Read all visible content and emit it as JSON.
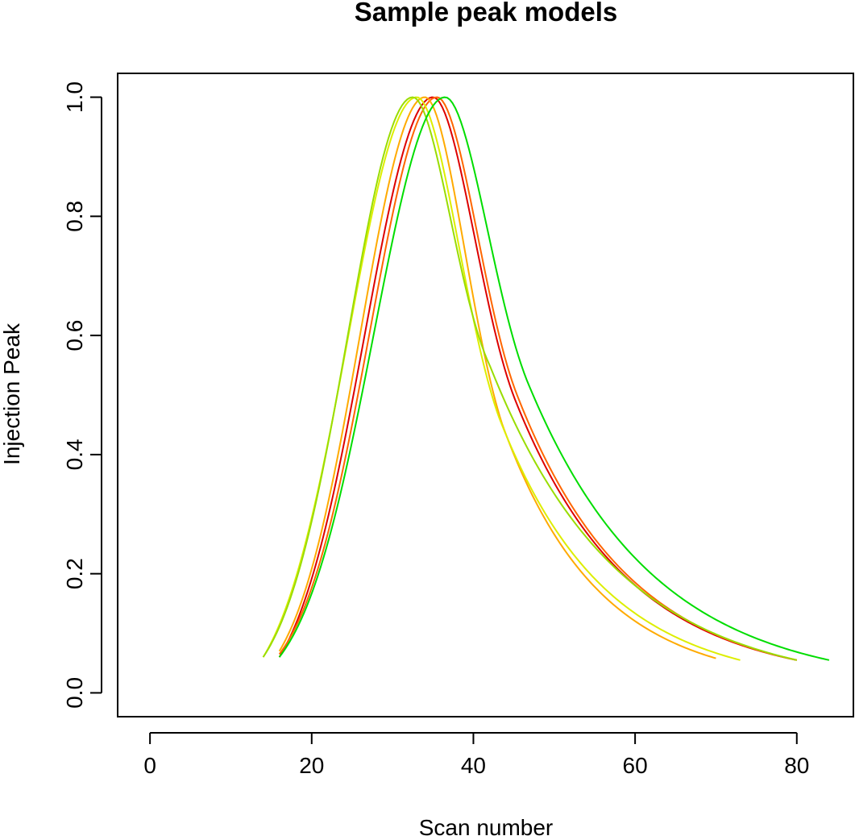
{
  "chart_data": {
    "type": "line",
    "title": "Sample peak models",
    "xlabel": "Scan number",
    "ylabel": "Injection Peak",
    "xlim": [
      -4,
      87
    ],
    "ylim": [
      -0.04,
      1.04
    ],
    "x_ticks": [
      0,
      20,
      40,
      60,
      80
    ],
    "y_ticks": [
      0.0,
      0.2,
      0.4,
      0.6,
      0.8,
      1.0
    ],
    "x_tick_labels": [
      "0",
      "20",
      "40",
      "60",
      "80"
    ],
    "y_tick_labels": [
      "0.0",
      "0.2",
      "0.4",
      "0.6",
      "0.8",
      "1.0"
    ],
    "grid": false,
    "legend": "none",
    "series": [
      {
        "color": "#DD0000",
        "start": 16,
        "end": 80,
        "peak": 35.0,
        "sigma": 8.5,
        "tau": 14.0,
        "y_start": 0.06,
        "y_end": 0.055
      },
      {
        "color": "#FF6600",
        "start": 16,
        "end": 80,
        "peak": 35.5,
        "sigma": 8.3,
        "tau": 14.0,
        "y_start": 0.065,
        "y_end": 0.055
      },
      {
        "color": "#FFAA00",
        "start": 16,
        "end": 70,
        "peak": 34.0,
        "sigma": 8.0,
        "tau": 11.8,
        "y_start": 0.07,
        "y_end": 0.058
      },
      {
        "color": "#DDEE00",
        "start": 14,
        "end": 73,
        "peak": 33.0,
        "sigma": 8.5,
        "tau": 13.0,
        "y_start": 0.06,
        "y_end": 0.055
      },
      {
        "color": "#99DD00",
        "start": 14,
        "end": 80,
        "peak": 32.5,
        "sigma": 8.0,
        "tau": 15.8,
        "y_start": 0.06,
        "y_end": 0.055
      },
      {
        "color": "#00DD00",
        "start": 16,
        "end": 84,
        "peak": 36.5,
        "sigma": 8.8,
        "tau": 15.5,
        "y_start": 0.06,
        "y_end": 0.055
      }
    ]
  }
}
